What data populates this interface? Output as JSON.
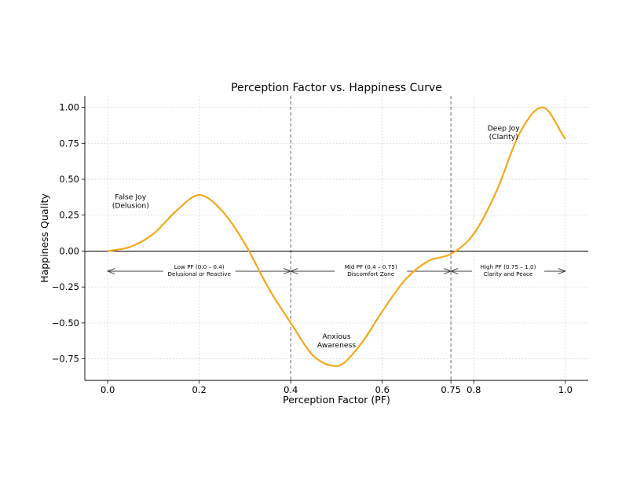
{
  "chart_data": {
    "type": "line",
    "title": "Perception Factor vs. Happiness Curve",
    "xlabel": "Perception Factor (PF)",
    "ylabel": "Happiness Quality",
    "xlim": [
      -0.05,
      1.05
    ],
    "ylim": [
      -0.9,
      1.08
    ],
    "grid": true,
    "xticks": [
      {
        "value": 0.0,
        "label": "0.0"
      },
      {
        "value": 0.2,
        "label": "0.2"
      },
      {
        "value": 0.4,
        "label": "0.4"
      },
      {
        "value": 0.6,
        "label": "0.6"
      },
      {
        "value": 0.75,
        "label": "0.75"
      },
      {
        "value": 0.8,
        "label": "0.8"
      },
      {
        "value": 1.0,
        "label": "1.0"
      }
    ],
    "yticks": [
      {
        "value": 1.0,
        "label": "1.00"
      },
      {
        "value": 0.75,
        "label": "0.75"
      },
      {
        "value": 0.5,
        "label": "0.50"
      },
      {
        "value": 0.25,
        "label": "0.25"
      },
      {
        "value": 0.0,
        "label": "0.00"
      },
      {
        "value": -0.25,
        "label": "−0.25"
      },
      {
        "value": -0.5,
        "label": "−0.50"
      },
      {
        "value": -0.75,
        "label": "−0.75"
      }
    ],
    "series": [
      {
        "color": "#f5a81c",
        "x": [
          0.0,
          0.05,
          0.1,
          0.15,
          0.2,
          0.25,
          0.3,
          0.35,
          0.4,
          0.45,
          0.5,
          0.55,
          0.6,
          0.65,
          0.7,
          0.75,
          0.8,
          0.85,
          0.9,
          0.95,
          1.0
        ],
        "y": [
          0.0,
          0.03,
          0.12,
          0.28,
          0.39,
          0.28,
          0.05,
          -0.25,
          -0.5,
          -0.73,
          -0.8,
          -0.66,
          -0.42,
          -0.2,
          -0.07,
          -0.02,
          0.12,
          0.42,
          0.82,
          1.0,
          0.78
        ]
      }
    ],
    "baseline": {
      "y": 0.0,
      "color": "#000000"
    },
    "vlines": [
      {
        "x": 0.4,
        "color": "#777777",
        "style": "dashed"
      },
      {
        "x": 0.75,
        "color": "#777777",
        "style": "dashed"
      }
    ],
    "annotations": [
      {
        "lines": [
          "False Joy",
          "(Delusion)"
        ],
        "x": 0.05,
        "y": 0.36
      },
      {
        "lines": [
          "Anxious",
          "Awareness"
        ],
        "x": 0.5,
        "y": -0.61
      },
      {
        "lines": [
          "Deep Joy",
          "(Clarity)"
        ],
        "x": 0.865,
        "y": 0.84
      }
    ],
    "zones": [
      {
        "lines": [
          "Low PF (0.0 – 0.4)",
          "Delusional or Reactive"
        ],
        "x_start": 0.0,
        "x_end": 0.4,
        "y": -0.14
      },
      {
        "lines": [
          "Mid PF (0.4 – 0.75)",
          "Discomfort Zone"
        ],
        "x_start": 0.4,
        "x_end": 0.75,
        "y": -0.14
      },
      {
        "lines": [
          "High PF (0.75 – 1.0)",
          "Clarity and Peace"
        ],
        "x_start": 0.75,
        "x_end": 1.0,
        "y": -0.14
      }
    ]
  }
}
